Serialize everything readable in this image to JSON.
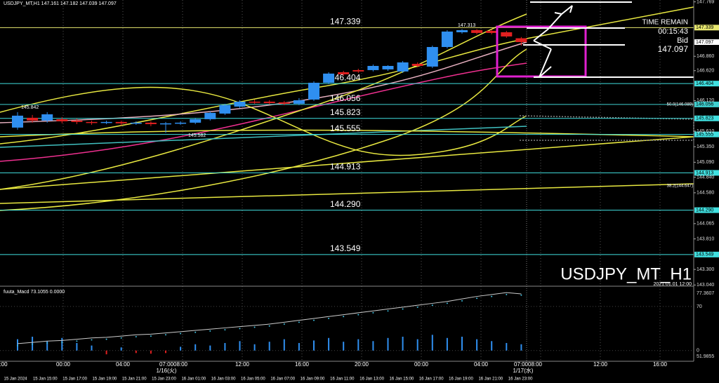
{
  "chart_data": {
    "type": "candlestick",
    "title": "USDJPY_MT,H1  147.161 147.182 147.039 147.097",
    "ylim": [
      143.02,
      147.8
    ],
    "yticks": [
      147.769,
      {
        "value": 146.86,
        "label": "146.860"
      },
      {
        "value": 146.62,
        "label": "146.620"
      },
      {
        "value": 146.12,
        "label": "146.120"
      },
      {
        "value": 145.61,
        "label": "145.610"
      },
      {
        "value": 145.35,
        "label": "145.350"
      },
      {
        "value": 145.09,
        "label": "145.090"
      },
      {
        "value": 144.84,
        "label": "144.840"
      },
      {
        "value": 144.58,
        "label": "144.580"
      },
      144.065,
      {
        "value": 143.81,
        "label": "143.810"
      },
      {
        "value": 143.3,
        "label": "143.300"
      },
      {
        "value": 143.04,
        "label": "143.040"
      }
    ],
    "levels": [
      147.339,
      146.404,
      146.056,
      145.823,
      145.555,
      144.913,
      {
        "value": 144.29,
        "label": "144.290"
      },
      143.549
    ],
    "level_colors": [
      "#e8e870",
      "#40e0e0",
      "#40d0d0",
      "#40e0e0",
      "#40e0e0",
      "#40e0e0",
      "#40e0e0",
      "#40e0e0"
    ],
    "up_color": "#2f8ff0",
    "down_color": "#e02020",
    "open": [
      145.669,
      145.833,
      145.786,
      145.809,
      145.786,
      145.763,
      145.751,
      145.763,
      145.74,
      145.751,
      145.727,
      145.74,
      145.751,
      145.809,
      145.903,
      146.02,
      146.102,
      146.102,
      146.09,
      146.067,
      146.137,
      146.418,
      146.594,
      146.629,
      146.629,
      146.641,
      146.606,
      146.734,
      146.688,
      147.015,
      147.261,
      147.297,
      147.285,
      147.261,
      147.161
    ],
    "high": [
      145.927,
      145.88,
      145.927,
      145.845,
      145.82,
      145.786,
      145.786,
      145.786,
      145.774,
      145.774,
      145.763,
      145.774,
      145.833,
      145.938,
      146.067,
      146.126,
      146.137,
      146.126,
      146.114,
      146.161,
      146.442,
      146.594,
      146.617,
      146.652,
      146.723,
      146.711,
      146.781,
      146.758,
      147.038,
      147.297,
      147.313,
      147.313,
      147.308,
      147.285,
      147.182
    ],
    "low": [
      145.634,
      145.751,
      145.751,
      145.74,
      145.727,
      145.716,
      145.727,
      145.704,
      145.716,
      145.692,
      145.582,
      145.716,
      145.727,
      145.786,
      145.88,
      145.997,
      146.067,
      146.056,
      146.044,
      146.044,
      146.114,
      146.395,
      146.536,
      146.582,
      146.606,
      146.617,
      146.582,
      146.676,
      146.664,
      146.992,
      147.238,
      147.226,
      147.226,
      147.168,
      147.039
    ],
    "close": [
      145.868,
      145.786,
      145.891,
      145.774,
      145.763,
      145.751,
      145.763,
      145.74,
      145.751,
      145.727,
      145.74,
      145.751,
      145.809,
      145.915,
      146.044,
      146.102,
      146.09,
      146.079,
      146.067,
      146.126,
      146.418,
      146.571,
      146.559,
      146.606,
      146.699,
      146.699,
      146.758,
      146.699,
      147.015,
      147.273,
      147.297,
      147.25,
      147.25,
      147.191,
      147.097
    ],
    "x_major_labels": [
      ":00",
      "00:00",
      "04:00",
      "07:0008:00",
      "12:00",
      "16:00",
      "20:00",
      "00:00",
      "04:00",
      "07:0008:00",
      "12:00",
      "16:00"
    ],
    "x_date_labels": [
      "1/16(火)",
      "1/17(水)"
    ],
    "x_minor_labels": [
      "15 Jan 2024",
      "15 Jan 15:00",
      "15 Jan 17:00",
      "15 Jan 19:00",
      "15 Jan 21:00",
      "15 Jan 23:00",
      "16 Jan 01:00",
      "16 Jan 03:00",
      "16 Jan 05:00",
      "16 Jan 07:00",
      "16 Jan 09:00",
      "16 Jan 11:00",
      "16 Jan 13:00",
      "16 Jan 15:00",
      "16 Jan 17:00",
      "16 Jan 19:00",
      "16 Jan 21:00",
      "16 Jan 23:00"
    ],
    "annotations": {
      "time_remain": "TIME REMAIN",
      "timer": "00:15:43",
      "bid": "Bid",
      "bid_value": "147.097",
      "watermark": "USDJPY_MT_H1",
      "stamp": "2021.01.01 12:00",
      "high_mark": "147.313",
      "left_mark_1": "145.842",
      "left_mark_2": "145.582",
      "fib_50": "50.0(146.089)",
      "fib_38": "38.2(144.647)"
    },
    "macd": {
      "title": "fuuta_Macd 73.1055 0.0000",
      "ylim": [
        -17,
        100
      ],
      "yticks": [
        70,
        0
      ],
      "max_label": "77.3607",
      "min_label": "51.9855",
      "line": [
        11,
        13,
        15,
        16,
        18,
        20,
        21,
        23,
        25,
        26,
        28,
        30,
        32,
        34,
        36,
        38,
        40,
        42,
        45,
        48,
        51,
        54,
        57,
        60,
        63,
        66,
        69,
        72,
        75,
        78,
        82,
        86,
        89,
        92,
        90
      ],
      "signal": [
        8,
        10,
        12,
        13,
        15,
        17,
        18,
        20,
        22,
        23,
        25,
        27,
        29,
        31,
        33,
        35,
        37,
        39,
        42,
        45,
        48,
        51,
        54,
        57,
        60,
        63,
        66,
        69,
        72,
        75,
        79,
        83,
        86,
        89,
        88
      ],
      "histogram": [
        18,
        22,
        15,
        20,
        12,
        8,
        -6,
        5,
        -4,
        -5,
        -4,
        6,
        10,
        8,
        12,
        15,
        10,
        14,
        18,
        12,
        16,
        20,
        14,
        18,
        15,
        20,
        22,
        18,
        25,
        20,
        22,
        18,
        15,
        12,
        10
      ]
    }
  }
}
